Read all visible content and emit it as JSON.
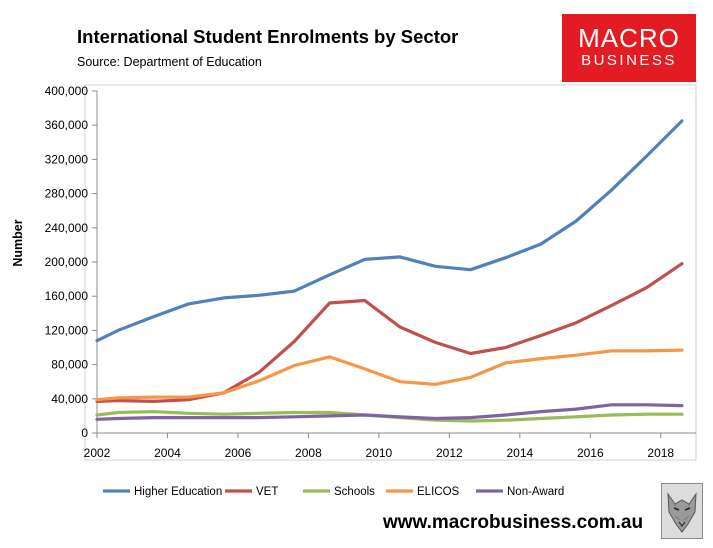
{
  "header": {
    "title": "International Student Enrolments by Sector",
    "subtitle": "Source: Department of Education"
  },
  "logo": {
    "top": "MACRO",
    "bottom": "BUSINESS"
  },
  "footer": {
    "url": "www.macrobusiness.com.au"
  },
  "chart_data": {
    "type": "line",
    "title": "International Student Enrolments by Sector",
    "xlabel": "",
    "ylabel": "Number",
    "xlim": [
      2002,
      2019
    ],
    "ylim": [
      0,
      400000
    ],
    "x_ticks": [
      2002,
      2004,
      2006,
      2008,
      2010,
      2012,
      2014,
      2016,
      2018
    ],
    "y_ticks": [
      0,
      40000,
      80000,
      120000,
      160000,
      200000,
      240000,
      280000,
      320000,
      360000,
      400000
    ],
    "y_tick_labels": [
      "0",
      "40,000",
      "80,000",
      "120,000",
      "160,000",
      "200,000",
      "240,000",
      "280,000",
      "320,000",
      "360,000",
      "400,000"
    ],
    "grid": false,
    "legend_position": "bottom",
    "x": [
      2002,
      2002.6,
      2003.6,
      2004.6,
      2005.6,
      2006.6,
      2007.6,
      2008.6,
      2009.6,
      2010.6,
      2011.6,
      2012.6,
      2013.6,
      2014.6,
      2015.6,
      2016.6,
      2017.6,
      2018.6
    ],
    "series": [
      {
        "name": "Higher Education",
        "color": "#4f81bd",
        "values": [
          108000,
          120000,
          136000,
          151000,
          158000,
          161000,
          166000,
          185000,
          203000,
          206000,
          195000,
          191000,
          205000,
          221000,
          248000,
          284000,
          324000,
          365000
        ]
      },
      {
        "name": "VET",
        "color": "#c0504d",
        "values": [
          37000,
          38000,
          37000,
          39000,
          47000,
          71000,
          107000,
          152000,
          155000,
          124000,
          106000,
          93000,
          100000,
          114000,
          129000,
          149000,
          170000,
          198000
        ]
      },
      {
        "name": "Schools",
        "color": "#9bbb59",
        "values": [
          21000,
          24000,
          25000,
          23000,
          22000,
          23000,
          24000,
          24000,
          21000,
          18000,
          15000,
          14000,
          15000,
          17000,
          19000,
          21000,
          22000,
          22000
        ]
      },
      {
        "name": "ELICOS",
        "color": "#f79646",
        "values": [
          39000,
          41000,
          42000,
          42000,
          47000,
          61000,
          79000,
          89000,
          75000,
          60000,
          57000,
          65000,
          82000,
          87000,
          91000,
          96000,
          96000,
          97000
        ]
      },
      {
        "name": "Non-Award",
        "color": "#8064a2",
        "values": [
          16000,
          17000,
          18000,
          18000,
          18000,
          18000,
          19000,
          20000,
          21000,
          19000,
          17000,
          18000,
          21000,
          25000,
          28000,
          33000,
          33000,
          32000
        ]
      }
    ]
  }
}
